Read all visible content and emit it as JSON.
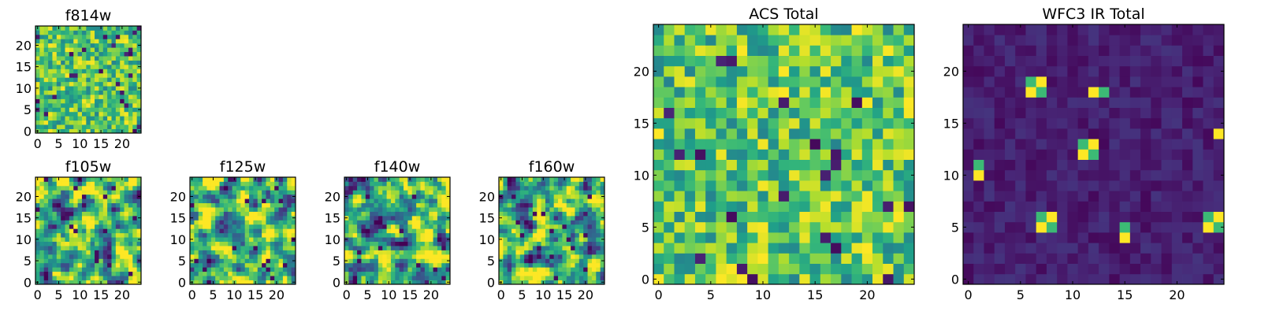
{
  "figure": {
    "description": "Grid of filter images with ACS and WFC3 IR totals"
  },
  "chart_data": [
    {
      "type": "heatmap",
      "title": "f814w",
      "grid_size": 25,
      "pattern": "noise",
      "colormap": "viridis",
      "xlim": [
        0,
        24
      ],
      "ylim": [
        0,
        24
      ],
      "xticks": [
        "0",
        "5",
        "10",
        "15",
        "20"
      ],
      "yticks": [
        "0",
        "5",
        "10",
        "15",
        "20"
      ]
    },
    {
      "type": "heatmap",
      "title": "f105w",
      "grid_size": 25,
      "pattern": "smooth",
      "colormap": "viridis",
      "xlim": [
        0,
        24
      ],
      "ylim": [
        0,
        24
      ],
      "xticks": [
        "0",
        "5",
        "10",
        "15",
        "20"
      ],
      "yticks": [
        "0",
        "5",
        "10",
        "15",
        "20"
      ]
    },
    {
      "type": "heatmap",
      "title": "f125w",
      "grid_size": 25,
      "pattern": "smooth",
      "colormap": "viridis",
      "xlim": [
        0,
        24
      ],
      "ylim": [
        0,
        24
      ],
      "xticks": [
        "0",
        "5",
        "10",
        "15",
        "20"
      ],
      "yticks": [
        "0",
        "5",
        "10",
        "15",
        "20"
      ]
    },
    {
      "type": "heatmap",
      "title": "f140w",
      "grid_size": 25,
      "pattern": "smooth",
      "colormap": "viridis",
      "xlim": [
        0,
        24
      ],
      "ylim": [
        0,
        24
      ],
      "xticks": [
        "0",
        "5",
        "10",
        "15",
        "20"
      ],
      "yticks": [
        "0",
        "5",
        "10",
        "15",
        "20"
      ]
    },
    {
      "type": "heatmap",
      "title": "f160w",
      "grid_size": 25,
      "pattern": "smooth",
      "colormap": "viridis",
      "xlim": [
        0,
        24
      ],
      "ylim": [
        0,
        24
      ],
      "xticks": [
        "0",
        "5",
        "10",
        "15",
        "20"
      ],
      "yticks": [
        "0",
        "5",
        "10",
        "15",
        "20"
      ]
    },
    {
      "type": "heatmap",
      "title": "ACS Total",
      "grid_size": 25,
      "pattern": "noise",
      "colormap": "viridis",
      "xlim": [
        0,
        24
      ],
      "ylim": [
        0,
        24
      ],
      "xticks": [
        "0",
        "5",
        "10",
        "15",
        "20"
      ],
      "yticks": [
        "0",
        "5",
        "10",
        "15",
        "20"
      ]
    },
    {
      "type": "heatmap",
      "title": "WFC3 IR Total",
      "grid_size": 25,
      "pattern": "sparse",
      "colormap": "viridis",
      "xlim": [
        0,
        24
      ],
      "ylim": [
        0,
        24
      ],
      "xticks": [
        "0",
        "5",
        "10",
        "15",
        "20"
      ],
      "yticks": [
        "0",
        "5",
        "10",
        "15",
        "20"
      ],
      "hotspots": [
        {
          "x": 6,
          "y": 18,
          "w": 2,
          "h": 2
        },
        {
          "x": 12,
          "y": 18,
          "w": 2,
          "h": 1
        },
        {
          "x": 11,
          "y": 12,
          "w": 2,
          "h": 2
        },
        {
          "x": 1,
          "y": 10,
          "w": 1,
          "h": 2
        },
        {
          "x": 7,
          "y": 5,
          "w": 2,
          "h": 2
        },
        {
          "x": 15,
          "y": 4,
          "w": 1,
          "h": 2
        },
        {
          "x": 23,
          "y": 5,
          "w": 2,
          "h": 2
        },
        {
          "x": 24,
          "y": 14,
          "w": 1,
          "h": 1
        }
      ]
    }
  ]
}
